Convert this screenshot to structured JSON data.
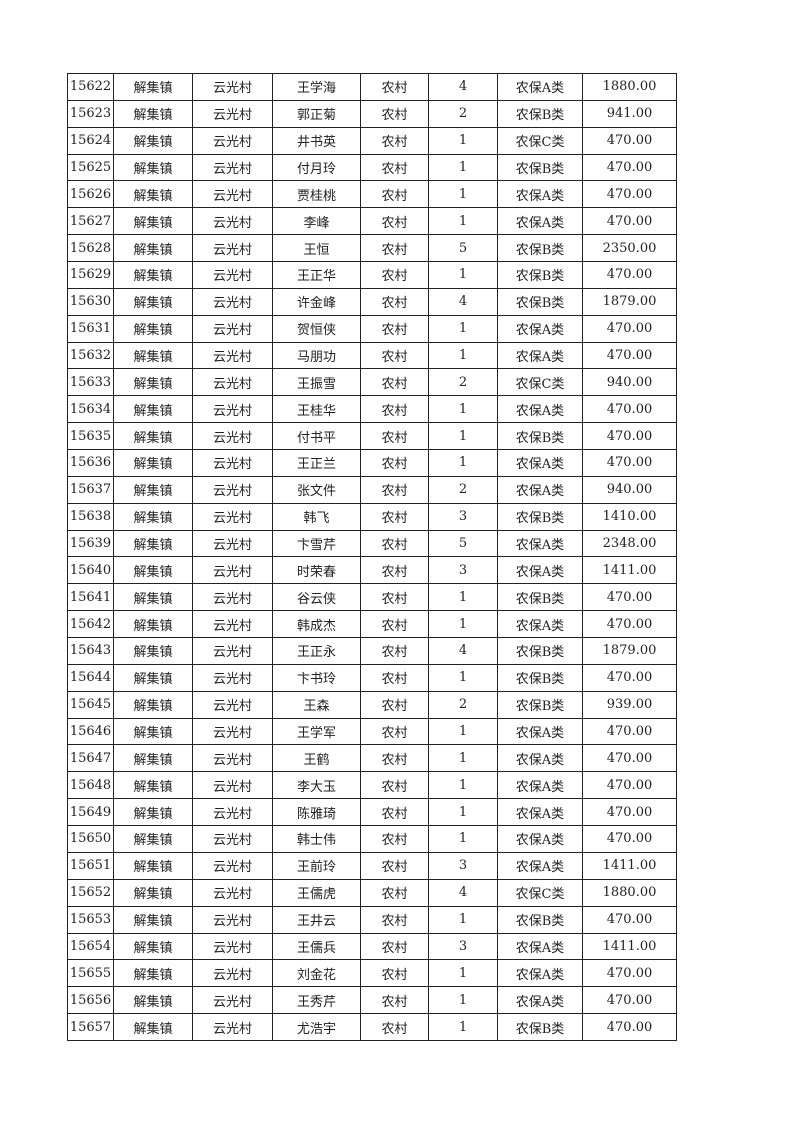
{
  "table": {
    "rows": [
      [
        "15622",
        "解集镇",
        "云光村",
        "王学海",
        "农村",
        "4",
        "农保A类",
        "1880.00"
      ],
      [
        "15623",
        "解集镇",
        "云光村",
        "郭正菊",
        "农村",
        "2",
        "农保B类",
        "941.00"
      ],
      [
        "15624",
        "解集镇",
        "云光村",
        "井书英",
        "农村",
        "1",
        "农保C类",
        "470.00"
      ],
      [
        "15625",
        "解集镇",
        "云光村",
        "付月玲",
        "农村",
        "1",
        "农保B类",
        "470.00"
      ],
      [
        "15626",
        "解集镇",
        "云光村",
        "贾桂桃",
        "农村",
        "1",
        "农保A类",
        "470.00"
      ],
      [
        "15627",
        "解集镇",
        "云光村",
        "李峰",
        "农村",
        "1",
        "农保A类",
        "470.00"
      ],
      [
        "15628",
        "解集镇",
        "云光村",
        "王恒",
        "农村",
        "5",
        "农保B类",
        "2350.00"
      ],
      [
        "15629",
        "解集镇",
        "云光村",
        "王正华",
        "农村",
        "1",
        "农保B类",
        "470.00"
      ],
      [
        "15630",
        "解集镇",
        "云光村",
        "许金峰",
        "农村",
        "4",
        "农保B类",
        "1879.00"
      ],
      [
        "15631",
        "解集镇",
        "云光村",
        "贺恒侠",
        "农村",
        "1",
        "农保A类",
        "470.00"
      ],
      [
        "15632",
        "解集镇",
        "云光村",
        "马朋功",
        "农村",
        "1",
        "农保A类",
        "470.00"
      ],
      [
        "15633",
        "解集镇",
        "云光村",
        "王振雪",
        "农村",
        "2",
        "农保C类",
        "940.00"
      ],
      [
        "15634",
        "解集镇",
        "云光村",
        "王桂华",
        "农村",
        "1",
        "农保A类",
        "470.00"
      ],
      [
        "15635",
        "解集镇",
        "云光村",
        "付书平",
        "农村",
        "1",
        "农保B类",
        "470.00"
      ],
      [
        "15636",
        "解集镇",
        "云光村",
        "王正兰",
        "农村",
        "1",
        "农保A类",
        "470.00"
      ],
      [
        "15637",
        "解集镇",
        "云光村",
        "张文件",
        "农村",
        "2",
        "农保A类",
        "940.00"
      ],
      [
        "15638",
        "解集镇",
        "云光村",
        "韩飞",
        "农村",
        "3",
        "农保B类",
        "1410.00"
      ],
      [
        "15639",
        "解集镇",
        "云光村",
        "卞雪芹",
        "农村",
        "5",
        "农保A类",
        "2348.00"
      ],
      [
        "15640",
        "解集镇",
        "云光村",
        "时荣春",
        "农村",
        "3",
        "农保A类",
        "1411.00"
      ],
      [
        "15641",
        "解集镇",
        "云光村",
        "谷云侠",
        "农村",
        "1",
        "农保B类",
        "470.00"
      ],
      [
        "15642",
        "解集镇",
        "云光村",
        "韩成杰",
        "农村",
        "1",
        "农保A类",
        "470.00"
      ],
      [
        "15643",
        "解集镇",
        "云光村",
        "王正永",
        "农村",
        "4",
        "农保B类",
        "1879.00"
      ],
      [
        "15644",
        "解集镇",
        "云光村",
        "卞书玲",
        "农村",
        "1",
        "农保B类",
        "470.00"
      ],
      [
        "15645",
        "解集镇",
        "云光村",
        "王森",
        "农村",
        "2",
        "农保B类",
        "939.00"
      ],
      [
        "15646",
        "解集镇",
        "云光村",
        "王学军",
        "农村",
        "1",
        "农保A类",
        "470.00"
      ],
      [
        "15647",
        "解集镇",
        "云光村",
        "王鹤",
        "农村",
        "1",
        "农保A类",
        "470.00"
      ],
      [
        "15648",
        "解集镇",
        "云光村",
        "李大玉",
        "农村",
        "1",
        "农保A类",
        "470.00"
      ],
      [
        "15649",
        "解集镇",
        "云光村",
        "陈雅琦",
        "农村",
        "1",
        "农保A类",
        "470.00"
      ],
      [
        "15650",
        "解集镇",
        "云光村",
        "韩士伟",
        "农村",
        "1",
        "农保A类",
        "470.00"
      ],
      [
        "15651",
        "解集镇",
        "云光村",
        "王前玲",
        "农村",
        "3",
        "农保A类",
        "1411.00"
      ],
      [
        "15652",
        "解集镇",
        "云光村",
        "王儒虎",
        "农村",
        "4",
        "农保C类",
        "1880.00"
      ],
      [
        "15653",
        "解集镇",
        "云光村",
        "王井云",
        "农村",
        "1",
        "农保B类",
        "470.00"
      ],
      [
        "15654",
        "解集镇",
        "云光村",
        "王儒兵",
        "农村",
        "3",
        "农保A类",
        "1411.00"
      ],
      [
        "15655",
        "解集镇",
        "云光村",
        "刘金花",
        "农村",
        "1",
        "农保A类",
        "470.00"
      ],
      [
        "15656",
        "解集镇",
        "云光村",
        "王秀芹",
        "农村",
        "1",
        "农保A类",
        "470.00"
      ],
      [
        "15657",
        "解集镇",
        "云光村",
        "尤浩宇",
        "农村",
        "1",
        "农保B类",
        "470.00"
      ]
    ]
  }
}
